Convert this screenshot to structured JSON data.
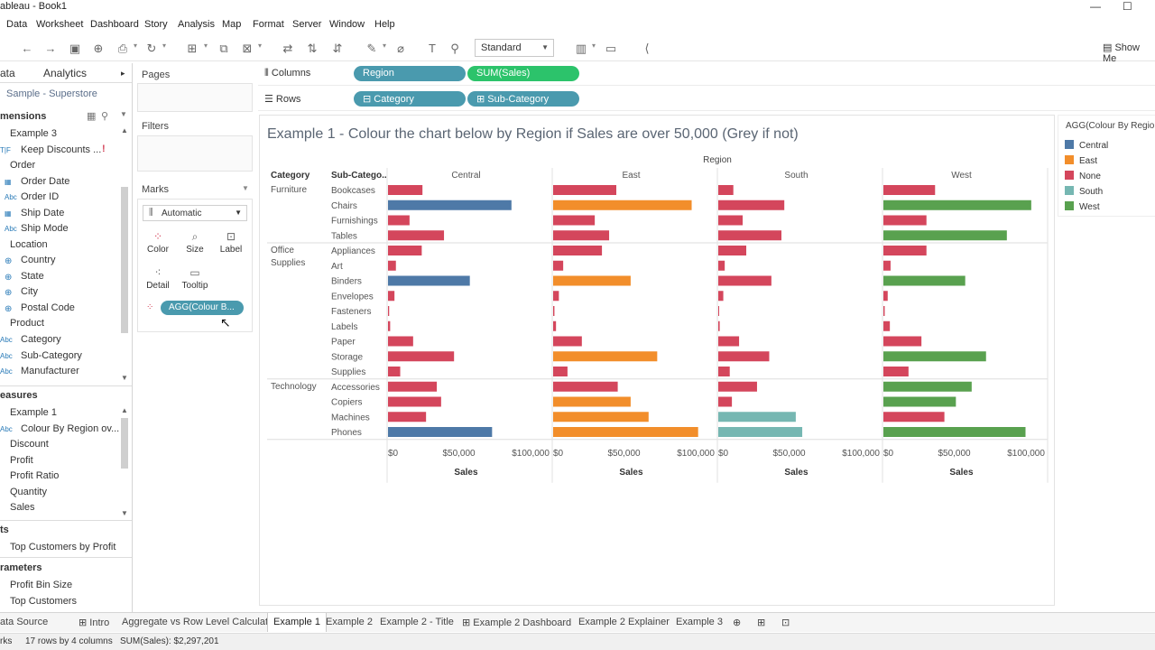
{
  "window": {
    "title": "ableau - Book1",
    "minimize": "—",
    "maximize": "☐"
  },
  "menu": [
    "Data",
    "Worksheet",
    "Dashboard",
    "Story",
    "Analysis",
    "Map",
    "Format",
    "Server",
    "Window",
    "Help"
  ],
  "toolbar": {
    "fit_select": "Standard",
    "show_me": "Show Me"
  },
  "data_pane": {
    "tab_data": "ata",
    "tab_analytics": "Analytics",
    "datasource": "Sample - Superstore",
    "dimensions_header": "mensions",
    "dimensions": [
      "Example 3",
      "Keep Discounts ...",
      "Order",
      "Order Date",
      "Order ID",
      "Ship Date",
      "Ship Mode",
      "Location",
      "Country",
      "State",
      "City",
      "Postal Code",
      "Product",
      "Category",
      "Sub-Category",
      "Manufacturer"
    ],
    "measures_header": "easures",
    "measures": [
      "Example 1",
      "Colour By Region ov...",
      "Discount",
      "Profit",
      "Profit Ratio",
      "Quantity",
      "Sales"
    ],
    "sets_header": "ts",
    "sets": [
      "Top Customers by Profit"
    ],
    "parameters_header": "rameters",
    "parameters": [
      "Profit Bin Size",
      "Top Customers"
    ]
  },
  "cards": {
    "pages": "Pages",
    "filters": "Filters",
    "marks": "Marks",
    "mark_type": "Automatic",
    "buttons": [
      "Color",
      "Size",
      "Label",
      "Detail",
      "Tooltip"
    ],
    "pill": "AGG(Colour B..."
  },
  "shelves": {
    "columns_label": "Columns",
    "columns": [
      "Region",
      "SUM(Sales)"
    ],
    "rows_label": "Rows",
    "rows": [
      "Category",
      "Sub-Category"
    ]
  },
  "colors": {
    "Central": "#4e79a7",
    "East": "#f28e2b",
    "None": "#d4465c",
    "South": "#76b7b2",
    "West": "#59a14f"
  },
  "chart_data": {
    "type": "bar",
    "title": "Example 1 - Colour the chart below by Region if Sales are over 50,000 (Grey if not)",
    "column_header": "Region",
    "row_headers": [
      "Category",
      "Sub-Catego.."
    ],
    "xlabel": "Sales",
    "xlim": [
      0,
      110000
    ],
    "xticks": [
      "$0",
      "$50,000",
      "$100,000"
    ],
    "regions": [
      "Central",
      "East",
      "South",
      "West"
    ],
    "groups": [
      {
        "category": "Furniture",
        "subcategories": [
          "Bookcases",
          "Chairs",
          "Furnishings",
          "Tables"
        ]
      },
      {
        "category": "Office Supplies",
        "subcategories": [
          "Appliances",
          "Art",
          "Binders",
          "Envelopes",
          "Fasteners",
          "Labels",
          "Paper",
          "Storage",
          "Supplies"
        ]
      },
      {
        "category": "Technology",
        "subcategories": [
          "Accessories",
          "Copiers",
          "Machines",
          "Phones"
        ]
      }
    ],
    "series": [
      {
        "name": "Central",
        "values": [
          24000,
          86000,
          15000,
          39000,
          23500,
          5500,
          57000,
          4500,
          800,
          1500,
          17500,
          46000,
          8500,
          34000,
          37000,
          26500,
          72500
        ],
        "colors": [
          "None",
          "Central",
          "None",
          "None",
          "None",
          "None",
          "Central",
          "None",
          "None",
          "None",
          "None",
          "None",
          "None",
          "None",
          "None",
          "None",
          "Central"
        ]
      },
      {
        "name": "East",
        "values": [
          44000,
          96500,
          29000,
          39000,
          34000,
          7000,
          54000,
          4000,
          900,
          2000,
          20000,
          72500,
          10000,
          45000,
          54000,
          66500,
          101000
        ],
        "colors": [
          "None",
          "East",
          "None",
          "None",
          "None",
          "None",
          "East",
          "None",
          "None",
          "None",
          "None",
          "East",
          "None",
          "None",
          "East",
          "East",
          "East"
        ]
      },
      {
        "name": "South",
        "values": [
          10500,
          46000,
          17000,
          44000,
          19500,
          4500,
          37000,
          3500,
          500,
          1000,
          14500,
          35500,
          8000,
          27000,
          9500,
          54000,
          58500
        ],
        "colors": [
          "None",
          "None",
          "None",
          "None",
          "None",
          "None",
          "None",
          "None",
          "None",
          "None",
          "None",
          "None",
          "None",
          "None",
          "None",
          "South",
          "South"
        ]
      },
      {
        "name": "West",
        "values": [
          36000,
          103000,
          30000,
          86000,
          30000,
          5000,
          57000,
          3000,
          900,
          4500,
          26500,
          71500,
          17500,
          61500,
          50500,
          42500,
          99000
        ],
        "colors": [
          "None",
          "West",
          "None",
          "West",
          "None",
          "None",
          "West",
          "None",
          "None",
          "None",
          "None",
          "West",
          "None",
          "West",
          "West",
          "None",
          "West"
        ]
      }
    ]
  },
  "legend": {
    "title": "AGG(Colour By Regio",
    "items": [
      "Central",
      "East",
      "None",
      "South",
      "West"
    ]
  },
  "tabs": [
    "ata Source",
    "Intro",
    "Aggregate vs Row Level Calculat...",
    "Example 1",
    "Example 2",
    "Example 2 - Title",
    "Example 2 Dashboard",
    "Example 2 Explainer",
    "Example 3"
  ],
  "status": {
    "marks": "rks",
    "rows": "17 rows by 4 columns",
    "sum": "SUM(Sales): $2,297,201"
  }
}
